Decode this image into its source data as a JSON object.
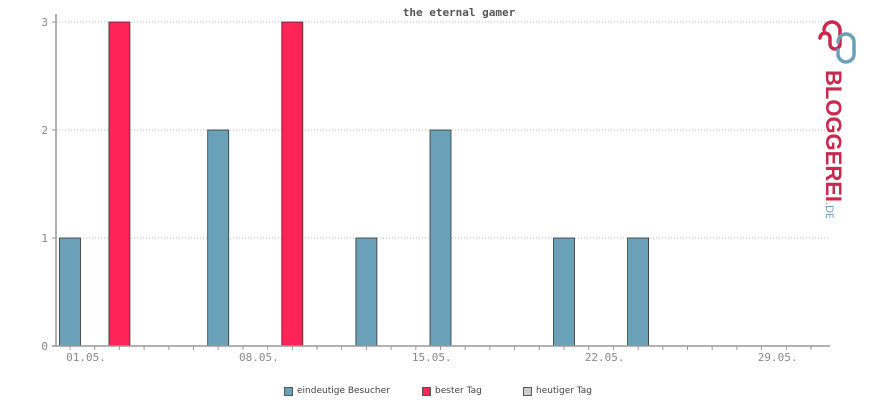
{
  "chart_data": {
    "type": "bar",
    "title": "the eternal gamer",
    "xlabel": "",
    "ylabel": "",
    "ylim": [
      0,
      3
    ],
    "yticks": [
      0,
      1,
      2,
      3
    ],
    "grid": true,
    "legend_position": "bottom",
    "x_tick_labels": [
      "01.05.",
      "08.05.",
      "15.05.",
      "22.05.",
      "29.05."
    ],
    "x_tick_days": [
      1,
      8,
      15,
      22,
      29
    ],
    "x_range_days": [
      0,
      31
    ],
    "series": [
      {
        "name": "eindeutige Besucher",
        "color": "#6aa0b8",
        "points": [
          {
            "day": 1,
            "value": 1
          },
          {
            "day": 7,
            "value": 2
          },
          {
            "day": 13,
            "value": 1
          },
          {
            "day": 16,
            "value": 2
          },
          {
            "day": 21,
            "value": 1
          },
          {
            "day": 24,
            "value": 1
          }
        ]
      },
      {
        "name": "bester Tag",
        "color": "#ff2458",
        "points": [
          {
            "day": 3,
            "value": 3
          },
          {
            "day": 10,
            "value": 3
          }
        ]
      },
      {
        "name": "heutiger Tag",
        "color": "#cccccc",
        "points": []
      }
    ]
  },
  "logo": {
    "text": "BLOGGEREI",
    "suffix": ".DE",
    "color_main": "#c8294f",
    "color_accent": "#6aa0b8"
  }
}
